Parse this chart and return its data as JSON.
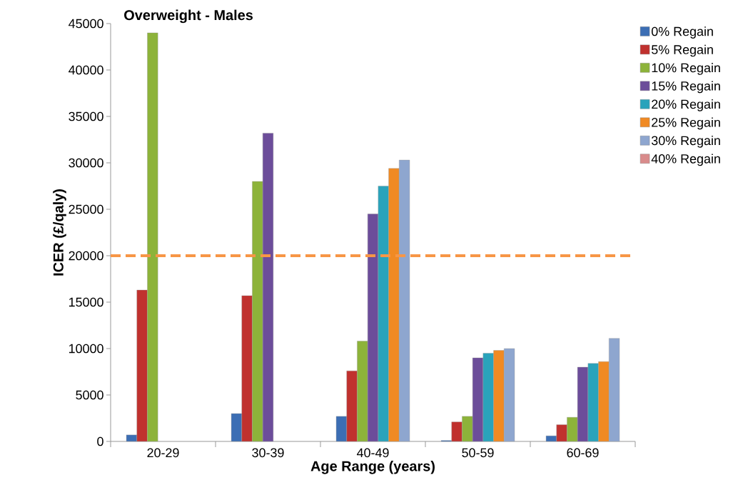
{
  "chart_data": {
    "type": "bar",
    "title": "Overweight - Males",
    "xlabel": "Age Range (years)",
    "ylabel": "ICER (£/qaly)",
    "categories": [
      "20-29",
      "30-39",
      "40-49",
      "50-59",
      "60-69"
    ],
    "series": [
      {
        "name": "0% Regain",
        "color": "#3c6eb4",
        "values": [
          700,
          3000,
          2700,
          100,
          600
        ]
      },
      {
        "name": "5% Regain",
        "color": "#c0312e",
        "values": [
          16300,
          15700,
          7600,
          2100,
          1800
        ]
      },
      {
        "name": "10% Regain",
        "color": "#8db33a",
        "values": [
          44000,
          28000,
          10800,
          2700,
          2600
        ]
      },
      {
        "name": "15% Regain",
        "color": "#6c4d9a",
        "values": [
          null,
          33200,
          24500,
          9000,
          8000
        ]
      },
      {
        "name": "20% Regain",
        "color": "#2aa3bb",
        "values": [
          null,
          null,
          27500,
          9500,
          8400
        ]
      },
      {
        "name": "25% Regain",
        "color": "#f08a23",
        "values": [
          null,
          null,
          29400,
          9800,
          8600
        ]
      },
      {
        "name": "30% Regain",
        "color": "#8ea6cf",
        "values": [
          null,
          null,
          30300,
          10000,
          11100
        ]
      },
      {
        "name": "40% Regain",
        "color": "#d98b8b",
        "values": [
          null,
          null,
          null,
          null,
          null
        ]
      }
    ],
    "ylim": [
      0,
      45000
    ],
    "yticks": [
      0,
      5000,
      10000,
      15000,
      20000,
      25000,
      30000,
      35000,
      40000,
      45000
    ],
    "ref_lines": [
      {
        "axis": "y",
        "value": 20000,
        "color": "#f79646",
        "line_style": "dashed"
      }
    ],
    "legend": "top right",
    "grid": false
  }
}
